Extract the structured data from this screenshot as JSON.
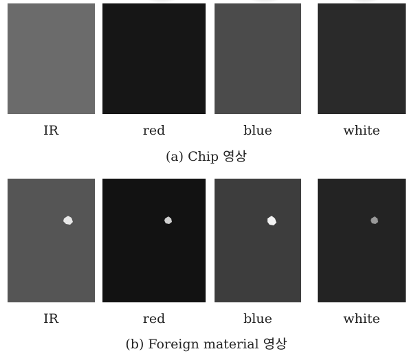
{
  "figures": [
    {
      "caption": "(a) Chip 영상",
      "panels": [
        {
          "label": "IR"
        },
        {
          "label": "red"
        },
        {
          "label": "blue"
        },
        {
          "label": "white"
        }
      ]
    },
    {
      "caption": "(b) Foreign material 영상",
      "panels": [
        {
          "label": "IR"
        },
        {
          "label": "red"
        },
        {
          "label": "blue"
        },
        {
          "label": "white"
        }
      ]
    }
  ]
}
